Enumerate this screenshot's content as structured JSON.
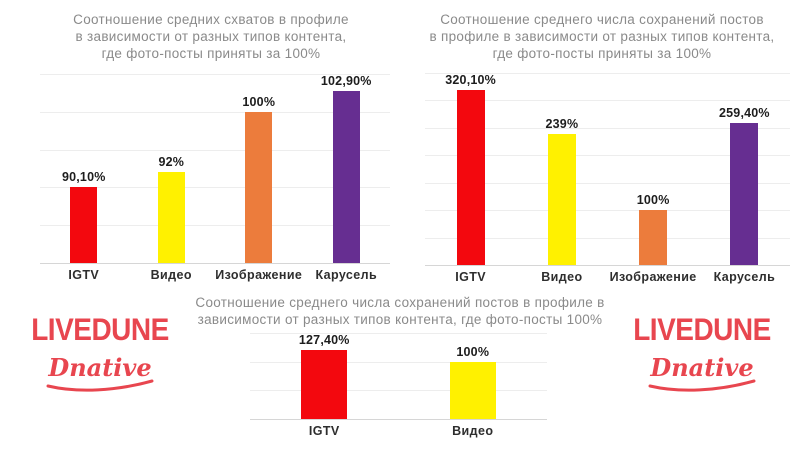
{
  "branding": {
    "livedune_label": "LIVEDUNE",
    "dnative_label": "Dnative",
    "brand_color": "#E8464F"
  },
  "chart_data": [
    {
      "type": "bar",
      "title": "Соотношение средних схватов в профиле в зависимости от разных типов контента, где фото-посты приняты за 100%",
      "title_lines": [
        "Соотношение средних схватов в профиле",
        "в зависимости от разных типов контента,",
        "где фото-посты приняты за 100%"
      ],
      "categories": [
        "IGTV",
        "Видео",
        "Изображение",
        "Карусель"
      ],
      "values": [
        90.1,
        92,
        100,
        102.9
      ],
      "value_labels": [
        "90,10%",
        "92%",
        "100%",
        "102,90%"
      ],
      "bar_colors": [
        "#F3080E",
        "#FFF100",
        "#EC7C3C",
        "#662E91"
      ],
      "ylim": [
        80,
        105
      ],
      "ytick": 5,
      "grid": true,
      "legend": "none",
      "xlabel": "",
      "ylabel": ""
    },
    {
      "type": "bar",
      "title": "Соотношение среднего числа сохранений постов в профиле в зависимости от разных типов контента, где фото-посты приняты за 100%",
      "title_lines": [
        "Соотношение среднего числа сохранений постов",
        "в профиле в зависимости от разных типов контента,",
        "где фото-посты приняты за 100%"
      ],
      "categories": [
        "IGTV",
        "Видео",
        "Изображение",
        "Карусель"
      ],
      "values": [
        320.1,
        239,
        100,
        259.4
      ],
      "value_labels": [
        "320,10%",
        "239%",
        "100%",
        "259,40%"
      ],
      "bar_colors": [
        "#F3080E",
        "#FFF100",
        "#EC7C3C",
        "#662E91"
      ],
      "ylim": [
        0,
        350
      ],
      "ytick": 50,
      "grid": true,
      "legend": "none",
      "xlabel": "",
      "ylabel": ""
    },
    {
      "type": "bar",
      "title": "Соотношение среднего числа сохранений постов в профиле в зависимости от разных типов контента, где фото-посты 100%",
      "title_lines": [
        "Соотношение среднего числа сохранений постов в профиле в",
        "зависимости от разных типов контента, где фото-посты 100%"
      ],
      "categories": [
        "IGTV",
        "Видео"
      ],
      "values": [
        127.4,
        100
      ],
      "value_labels": [
        "127,40%",
        "100%"
      ],
      "bar_colors": [
        "#F3080E",
        "#FFF100"
      ],
      "ylim": [
        0,
        150
      ],
      "ytick": 50,
      "grid": true,
      "legend": "none",
      "xlabel": "",
      "ylabel": ""
    }
  ]
}
